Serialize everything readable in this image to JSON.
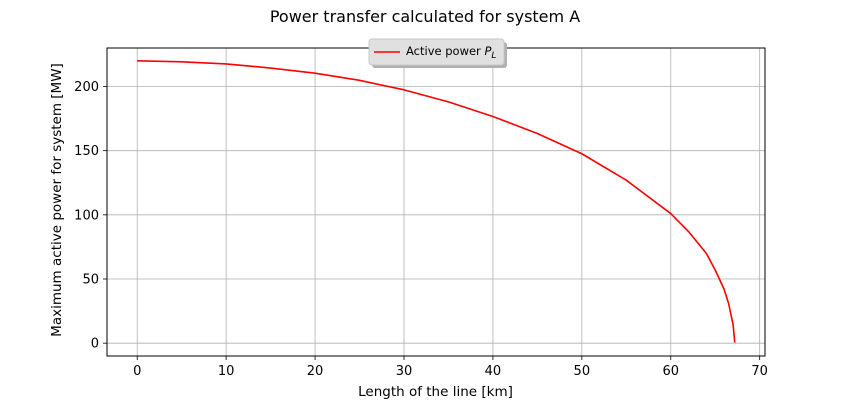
{
  "chart_data": {
    "type": "line",
    "title": "Power transfer calculated for system A",
    "xlabel": "Length of the line [km]",
    "ylabel": "Maximum active power for system [MW]",
    "xlim": [
      -3.4,
      70.6
    ],
    "ylim": [
      -10,
      230
    ],
    "xticks": [
      0,
      10,
      20,
      30,
      40,
      50,
      60,
      70
    ],
    "yticks": [
      0,
      50,
      100,
      150,
      200
    ],
    "grid": true,
    "legend_position": "top-center",
    "series": [
      {
        "name": "Active power P_L",
        "legend_label": "Active power ",
        "legend_symbol": "P",
        "legend_subscript": "L",
        "color": "#ff0000",
        "x": [
          0,
          5,
          10,
          15,
          20,
          25,
          30,
          35,
          40,
          45,
          50,
          55,
          60,
          62,
          64,
          65,
          66,
          66.5,
          67,
          67.1,
          67.2
        ],
        "y": [
          220,
          219.2,
          217.6,
          214.4,
          210.4,
          204.8,
          197.4,
          188.0,
          176.6,
          163.4,
          147.6,
          127.0,
          101.0,
          87.0,
          70.0,
          57.0,
          42.0,
          31.0,
          15.0,
          8.0,
          0.5
        ]
      }
    ]
  }
}
